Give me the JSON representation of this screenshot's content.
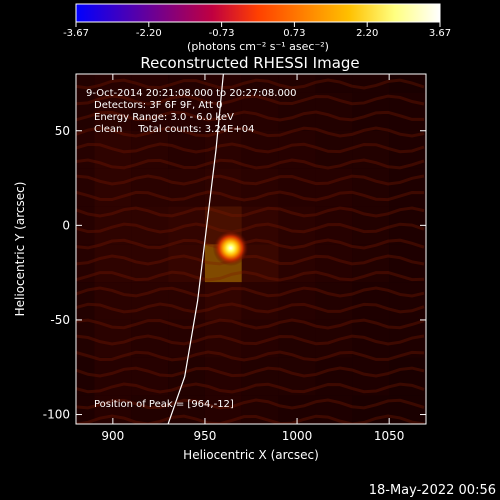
{
  "colorbar": {
    "ticks": [
      "-3.67",
      "-2.20",
      "-0.73",
      "0.73",
      "2.20",
      "3.67"
    ],
    "unit_label": "(photons cm⁻² s⁻¹ asec⁻²)"
  },
  "plot": {
    "title": "Reconstructed RHESSI Image",
    "xlabel": "Heliocentric X (arcsec)",
    "ylabel": "Heliocentric Y (arcsec)",
    "xticks": [
      "900",
      "950",
      "1000",
      "1050"
    ],
    "yticks": [
      "50",
      "0",
      "-50",
      "-100"
    ],
    "annotations": [
      "9-Oct-2014 20:21:08.000 to 20:27:08.000",
      "Detectors: 3F 6F 9F, Att 0",
      "Energy Range: 3.0 - 6.0 keV",
      "Clean     Total counts: 3.24E+04"
    ],
    "peak_text": "Position of Peak = [964,-12]"
  },
  "footer": {
    "timestamp": "18-May-2022 00:56"
  },
  "colors": {
    "colormap": [
      "#0000ff",
      "#4000c0",
      "#800080",
      "#c00040",
      "#ff4000",
      "#ff8000",
      "#ffc000",
      "#ffff80",
      "#ffffff"
    ]
  },
  "chart_data": {
    "type": "heatmap",
    "title": "Reconstructed RHESSI Image",
    "xlabel": "Heliocentric X (arcsec)",
    "ylabel": "Heliocentric Y (arcsec)",
    "xlim": [
      880,
      1070
    ],
    "ylim": [
      -105,
      80
    ],
    "color_range": [
      -3.67,
      3.67
    ],
    "peak": {
      "x": 964,
      "y": -12
    },
    "limb_curve": {
      "x": [
        960,
        956,
        951,
        946,
        939,
        930
      ],
      "y": [
        80,
        40,
        0,
        -40,
        -80,
        -105
      ]
    },
    "x": [
      880,
      900,
      920,
      940,
      960,
      980,
      1000,
      1020,
      1040,
      1060
    ],
    "y": [
      -100,
      -80,
      -60,
      -40,
      -20,
      0,
      20,
      40,
      60,
      80
    ],
    "z": [
      [
        0.1,
        0.3,
        0.2,
        0.2,
        0.3,
        0.2,
        0.1,
        0.1,
        0.0,
        0.0
      ],
      [
        0.1,
        0.3,
        0.3,
        0.2,
        0.3,
        0.2,
        0.2,
        0.1,
        0.1,
        0.0
      ],
      [
        0.2,
        0.4,
        0.3,
        0.3,
        0.4,
        0.3,
        0.2,
        0.2,
        0.1,
        0.1
      ],
      [
        0.2,
        0.4,
        0.4,
        0.4,
        0.6,
        0.4,
        0.3,
        0.2,
        0.1,
        0.1
      ],
      [
        0.3,
        0.5,
        0.5,
        0.7,
        2.6,
        0.8,
        0.4,
        0.3,
        0.2,
        0.1
      ],
      [
        0.3,
        0.5,
        0.5,
        0.6,
        1.2,
        0.6,
        0.4,
        0.3,
        0.2,
        0.1
      ],
      [
        0.3,
        0.5,
        0.4,
        0.4,
        0.5,
        0.4,
        0.3,
        0.3,
        0.2,
        0.1
      ],
      [
        0.3,
        0.5,
        0.4,
        0.3,
        0.4,
        0.3,
        0.3,
        0.2,
        0.2,
        0.1
      ],
      [
        0.2,
        0.4,
        0.3,
        0.3,
        0.3,
        0.3,
        0.2,
        0.2,
        0.1,
        0.1
      ],
      [
        0.2,
        0.3,
        0.3,
        0.2,
        0.3,
        0.2,
        0.2,
        0.1,
        0.1,
        0.0
      ]
    ]
  }
}
